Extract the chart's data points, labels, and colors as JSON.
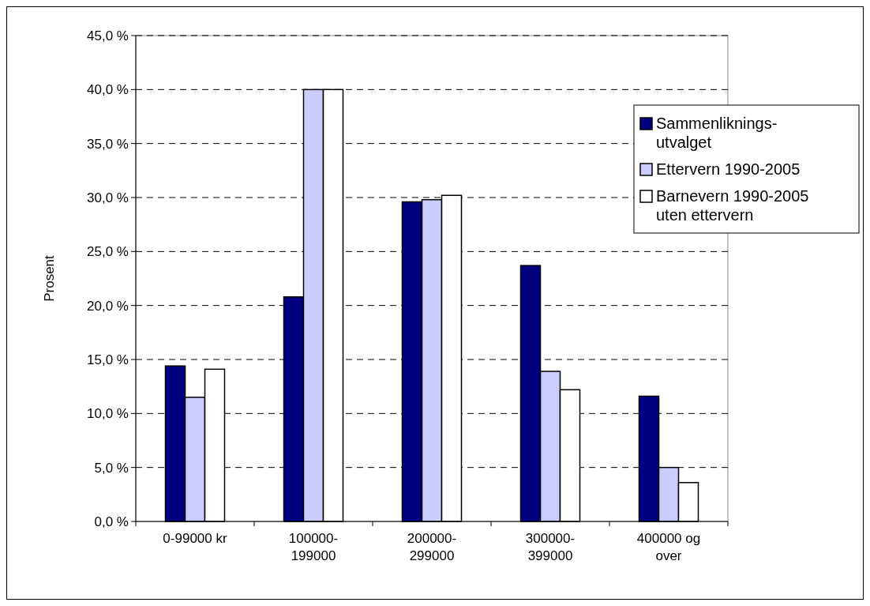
{
  "chart_data": {
    "type": "bar",
    "ylabel": "Prosent",
    "categories": [
      "0-99000 kr",
      "100000-199000",
      "200000-299000",
      "300000-399000",
      "400000 og over"
    ],
    "series": [
      {
        "name": "Sammenliknings-utvalget",
        "color": "#000080",
        "values": [
          14.4,
          20.8,
          29.6,
          23.7,
          11.6
        ]
      },
      {
        "name": "Ettervern 1990-2005",
        "color": "#ccccff",
        "values": [
          11.5,
          40.0,
          29.8,
          13.9,
          5.0
        ]
      },
      {
        "name": "Barnevern 1990-2005 uten ettervern",
        "color": "#ffffff",
        "values": [
          14.1,
          40.0,
          30.2,
          12.2,
          3.6
        ]
      }
    ],
    "ylim": [
      0,
      45
    ],
    "yticks": [
      {
        "value": 0,
        "label": "0,0 %"
      },
      {
        "value": 5,
        "label": "5,0 %"
      },
      {
        "value": 10,
        "label": "10,0 %"
      },
      {
        "value": 15,
        "label": "15,0 %"
      },
      {
        "value": 20,
        "label": "20,0 %"
      },
      {
        "value": 25,
        "label": "25,0 %"
      },
      {
        "value": 30,
        "label": "30,0 %"
      },
      {
        "value": 35,
        "label": "35,0 %"
      },
      {
        "value": 40,
        "label": "40,0 %"
      },
      {
        "value": 45,
        "label": "45,0 %"
      }
    ],
    "grid": "y",
    "legend": "top right"
  }
}
